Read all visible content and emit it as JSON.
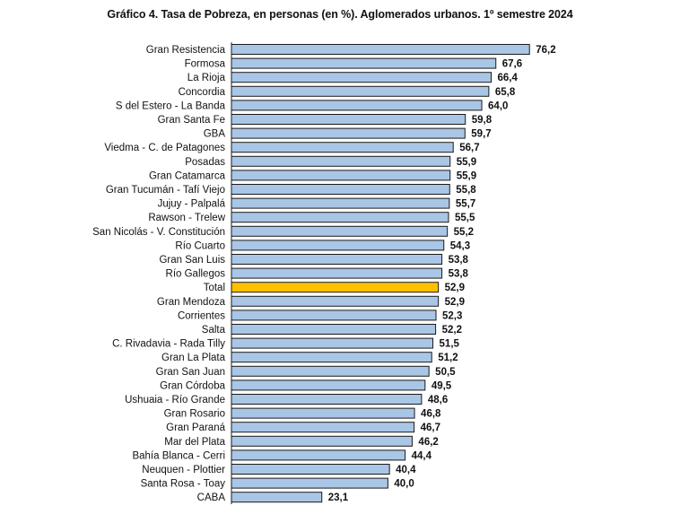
{
  "chart_data": {
    "type": "bar",
    "orientation": "horizontal",
    "title": "Gráfico 4. Tasa de Pobreza, en personas (en %). Aglomerados urbanos. 1º semestre 2024",
    "xlim": [
      0,
      80
    ],
    "grid": false,
    "legend": "none",
    "value_format": "comma-decimal-1",
    "colors": {
      "bar": "#a9c6e6",
      "highlight": "#ffc000",
      "stroke": "#1a1a1a"
    },
    "highlight_category": "Total",
    "categories": [
      "Gran Resistencia",
      "Formosa",
      "La Rioja",
      "Concordia",
      "S del Estero - La Banda",
      "Gran Santa Fe",
      "GBA",
      "Viedma - C. de Patagones",
      "Posadas",
      "Gran Catamarca",
      "Gran Tucumán - Tafí Viejo",
      "Jujuy - Palpalá",
      "Rawson - Trelew",
      "San Nicolás - V. Constitución",
      "Río Cuarto",
      "Gran San Luis",
      "Río Gallegos",
      "Total",
      "Gran Mendoza",
      "Corrientes",
      "Salta",
      "C. Rivadavia - Rada Tilly",
      "Gran La Plata",
      "Gran San Juan",
      "Gran Córdoba",
      "Ushuaia - Río Grande",
      "Gran Rosario",
      "Gran Paraná",
      "Mar del Plata",
      "Bahía Blanca - Cerri",
      "Neuquen - Plottier",
      "Santa Rosa - Toay",
      "CABA"
    ],
    "values": [
      76.2,
      67.6,
      66.4,
      65.8,
      64.0,
      59.8,
      59.7,
      56.7,
      55.9,
      55.9,
      55.8,
      55.7,
      55.5,
      55.2,
      54.3,
      53.8,
      53.8,
      52.9,
      52.9,
      52.3,
      52.2,
      51.5,
      51.2,
      50.5,
      49.5,
      48.6,
      46.8,
      46.7,
      46.2,
      44.4,
      40.4,
      40.0,
      23.1
    ]
  }
}
